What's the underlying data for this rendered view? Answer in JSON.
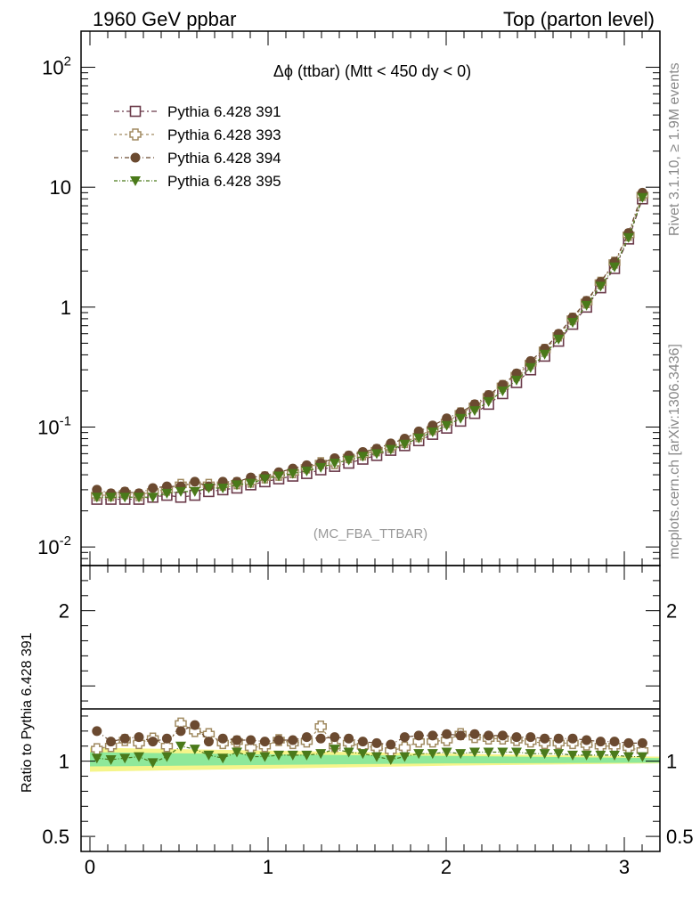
{
  "header": {
    "left": "1960 GeV ppbar",
    "right": "Top (parton level)"
  },
  "side_labels": {
    "rivet": "Rivet 3.1.10, ≥ 1.9M events",
    "mcplots": "mcplots.cern.ch [arXiv:1306.3436]"
  },
  "chart_data": [
    {
      "type": "line",
      "panel": "main",
      "title": "Δϕ (ttbar) (Mtt < 450 dy < 0)",
      "watermark": "(MC_FBA_TTBAR)",
      "xlabel": "",
      "ylabel": "",
      "xlim": [
        -0.05,
        3.2
      ],
      "ylim": [
        0.007,
        200
      ],
      "log_y": true,
      "y_tick_labels": [
        "10^-2",
        "10^-1",
        "1",
        "10",
        "10^2"
      ],
      "legend_position": "top-left",
      "x": [
        0.039,
        0.118,
        0.196,
        0.275,
        0.353,
        0.432,
        0.51,
        0.589,
        0.667,
        0.746,
        0.825,
        0.903,
        0.982,
        1.06,
        1.139,
        1.217,
        1.296,
        1.374,
        1.453,
        1.532,
        1.61,
        1.689,
        1.767,
        1.846,
        1.924,
        2.003,
        2.081,
        2.16,
        2.238,
        2.317,
        2.395,
        2.474,
        2.553,
        2.631,
        2.71,
        2.788,
        2.867,
        2.945,
        3.024,
        3.102
      ],
      "series": [
        {
          "name": "Pythia 6.428 391",
          "color": "#6b3a4a",
          "marker": "open-square",
          "values": [
            0.025,
            0.025,
            0.025,
            0.025,
            0.026,
            0.027,
            0.026,
            0.027,
            0.029,
            0.03,
            0.031,
            0.033,
            0.035,
            0.037,
            0.039,
            0.041,
            0.044,
            0.047,
            0.05,
            0.054,
            0.058,
            0.064,
            0.07,
            0.077,
            0.087,
            0.098,
            0.112,
            0.13,
            0.155,
            0.19,
            0.235,
            0.3,
            0.39,
            0.52,
            0.72,
            1.0,
            1.45,
            2.1,
            3.7,
            8.0
          ]
        },
        {
          "name": "Pythia 6.428 393",
          "color": "#a08a60",
          "marker": "open-cross",
          "values": [
            0.027,
            0.027,
            0.028,
            0.027,
            0.029,
            0.03,
            0.033,
            0.033,
            0.033,
            0.033,
            0.034,
            0.035,
            0.038,
            0.04,
            0.042,
            0.046,
            0.05,
            0.05,
            0.056,
            0.059,
            0.064,
            0.068,
            0.075,
            0.084,
            0.096,
            0.11,
            0.13,
            0.15,
            0.18,
            0.22,
            0.27,
            0.34,
            0.44,
            0.58,
            0.8,
            1.1,
            1.6,
            2.35,
            4.0,
            8.6
          ]
        },
        {
          "name": "Pythia 6.428 394",
          "color": "#6b4a30",
          "marker": "filled-circle",
          "values": [
            0.03,
            0.028,
            0.029,
            0.028,
            0.031,
            0.032,
            0.032,
            0.035,
            0.032,
            0.035,
            0.035,
            0.038,
            0.039,
            0.042,
            0.045,
            0.048,
            0.05,
            0.055,
            0.058,
            0.062,
            0.066,
            0.073,
            0.08,
            0.092,
            0.103,
            0.118,
            0.133,
            0.155,
            0.185,
            0.225,
            0.28,
            0.355,
            0.45,
            0.6,
            0.82,
            1.13,
            1.62,
            2.38,
            4.15,
            9.0
          ]
        },
        {
          "name": "Pythia 6.428 395",
          "color": "#4a7a1a",
          "marker": "filled-triangle-down",
          "values": [
            0.026,
            0.026,
            0.026,
            0.026,
            0.026,
            0.028,
            0.029,
            0.029,
            0.031,
            0.031,
            0.033,
            0.034,
            0.037,
            0.039,
            0.041,
            0.043,
            0.046,
            0.05,
            0.053,
            0.057,
            0.06,
            0.065,
            0.072,
            0.081,
            0.091,
            0.103,
            0.118,
            0.137,
            0.163,
            0.2,
            0.246,
            0.313,
            0.405,
            0.54,
            0.745,
            1.035,
            1.495,
            2.16,
            3.8,
            8.2
          ]
        }
      ]
    },
    {
      "type": "line",
      "panel": "ratio",
      "xlabel": "",
      "ylabel": "Ratio to Pythia 6.428 391",
      "xlim": [
        -0.05,
        3.2
      ],
      "ylim": [
        0.4,
        2.3
      ],
      "x_tick_labels": [
        "0",
        "1",
        "2",
        "3"
      ],
      "y_tick_labels": [
        "0.5",
        "1",
        "2"
      ],
      "reference_band": {
        "x": [
          0.0,
          1.0,
          2.0,
          3.2
        ],
        "green_low": [
          0.965,
          0.975,
          0.985,
          0.99
        ],
        "green_high": [
          1.06,
          1.045,
          1.035,
          1.02
        ],
        "yellow_low": [
          0.93,
          0.95,
          0.97,
          0.985
        ],
        "yellow_high": [
          1.09,
          1.07,
          1.05,
          1.03
        ]
      },
      "x": [
        0.039,
        0.118,
        0.196,
        0.275,
        0.353,
        0.432,
        0.51,
        0.589,
        0.667,
        0.746,
        0.825,
        0.903,
        0.982,
        1.06,
        1.139,
        1.217,
        1.296,
        1.374,
        1.453,
        1.532,
        1.61,
        1.689,
        1.767,
        1.846,
        1.924,
        2.003,
        2.081,
        2.16,
        2.238,
        2.317,
        2.395,
        2.474,
        2.553,
        2.631,
        2.71,
        2.788,
        2.867,
        2.945,
        3.024,
        3.102
      ],
      "series": [
        {
          "name": "Pythia 6.428 393",
          "color": "#a08a60",
          "marker": "open-cross",
          "values": [
            1.08,
            1.1,
            1.14,
            1.12,
            1.15,
            1.1,
            1.25,
            1.2,
            1.18,
            1.12,
            1.13,
            1.09,
            1.1,
            1.14,
            1.12,
            1.13,
            1.23,
            1.1,
            1.12,
            1.1,
            1.09,
            1.07,
            1.09,
            1.13,
            1.13,
            1.14,
            1.18,
            1.16,
            1.15,
            1.15,
            1.14,
            1.13,
            1.12,
            1.12,
            1.12,
            1.11,
            1.1,
            1.1,
            1.09,
            1.07
          ]
        },
        {
          "name": "Pythia 6.428 394",
          "color": "#6b4a30",
          "marker": "filled-circle",
          "values": [
            1.2,
            1.13,
            1.15,
            1.16,
            1.13,
            1.15,
            1.2,
            1.24,
            1.13,
            1.15,
            1.14,
            1.14,
            1.13,
            1.14,
            1.14,
            1.16,
            1.15,
            1.16,
            1.15,
            1.13,
            1.12,
            1.11,
            1.16,
            1.17,
            1.17,
            1.18,
            1.17,
            1.18,
            1.17,
            1.17,
            1.16,
            1.16,
            1.15,
            1.15,
            1.15,
            1.14,
            1.13,
            1.13,
            1.12,
            1.12
          ]
        },
        {
          "name": "Pythia 6.428 395",
          "color": "#4a7a1a",
          "marker": "filled-triangle-down",
          "values": [
            1.02,
            1.01,
            1.02,
            1.03,
            0.99,
            1.03,
            1.1,
            1.08,
            1.04,
            1.02,
            1.06,
            1.03,
            1.03,
            1.04,
            1.04,
            1.04,
            1.05,
            1.08,
            1.06,
            1.05,
            1.03,
            1.01,
            1.03,
            1.05,
            1.05,
            1.06,
            1.05,
            1.06,
            1.06,
            1.06,
            1.06,
            1.05,
            1.05,
            1.05,
            1.04,
            1.04,
            1.04,
            1.04,
            1.03,
            1.03
          ]
        }
      ]
    }
  ]
}
